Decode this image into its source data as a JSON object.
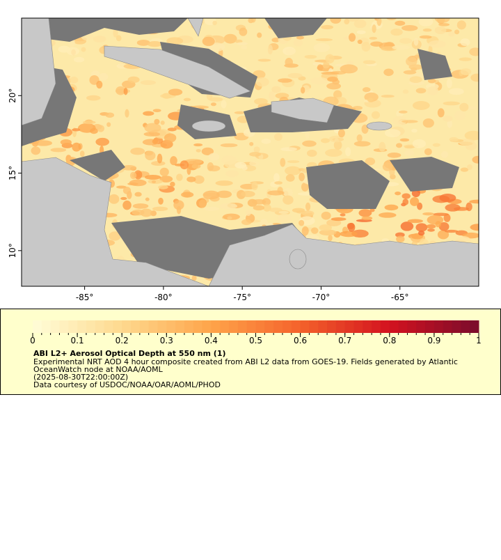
{
  "map": {
    "xlim": [
      -89,
      -60
    ],
    "ylim": [
      7.7,
      25
    ],
    "xticks": [
      {
        "value": -85,
        "label": "-85°"
      },
      {
        "value": -80,
        "label": "-80°"
      },
      {
        "value": -75,
        "label": "-75°"
      },
      {
        "value": -70,
        "label": "-70°"
      },
      {
        "value": -65,
        "label": "-65°"
      }
    ],
    "yticks": [
      {
        "value": 10,
        "label": "10°"
      },
      {
        "value": 15,
        "label": "15°"
      },
      {
        "value": 20,
        "label": "20°"
      }
    ]
  },
  "colorbar": {
    "range": [
      0,
      1
    ],
    "ticks": [
      0,
      0.1,
      0.2,
      0.3,
      0.4,
      0.5,
      0.6,
      0.7,
      0.8,
      0.9,
      1
    ]
  },
  "legend": {
    "title": "ABI L2+ Aerosol Optical Depth at 550 nm (1)",
    "lines": [
      "Experimental NRT AOD 4 hour composite created from ABI L2 data from GOES-19. Fields generated by Atlantic",
      "OceanWatch node at NOAA/AOML",
      "(2025-08-30T22:00:00Z)",
      "Data courtesy of USDOC/NOAA/OAR/AOML/PHOD"
    ]
  }
}
